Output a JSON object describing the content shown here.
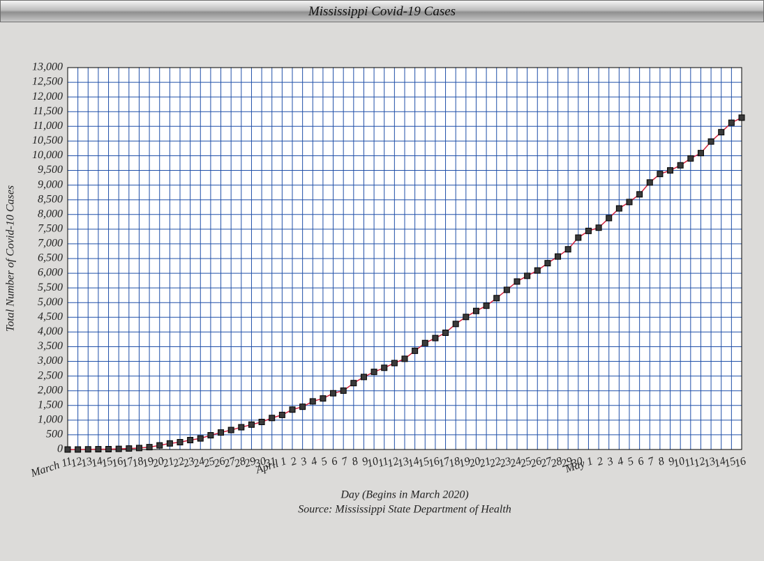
{
  "chart_data": {
    "type": "line",
    "title": "Mississippi Covid-19 Cases",
    "xlabel": "Day (Begins in March 2020)",
    "source": "Source: Mississippi State Department of Health",
    "ylabel": "Total Number of Covid-10 Cases",
    "categories": [
      "March 11",
      "12",
      "13",
      "14",
      "15",
      "16",
      "17",
      "18",
      "19",
      "20",
      "21",
      "22",
      "23",
      "24",
      "25",
      "26",
      "27",
      "28",
      "29",
      "30",
      "31",
      "April 1",
      "2",
      "3",
      "4",
      "5",
      "6",
      "7",
      "8",
      "9",
      "10",
      "11",
      "12",
      "13",
      "14",
      "15",
      "16",
      "17",
      "18",
      "19",
      "20",
      "21",
      "22",
      "23",
      "24",
      "25",
      "26",
      "27",
      "28",
      "29",
      "30",
      "May 1",
      "2",
      "3",
      "4",
      "5",
      "6",
      "7",
      "8",
      "9",
      "10",
      "11",
      "12",
      "13",
      "14",
      "15",
      "16"
    ],
    "series": [
      {
        "name": "Cases",
        "color": "#d0203c",
        "marker_color": "#3a3a3a",
        "values": [
          0,
          1,
          6,
          10,
          12,
          21,
          34,
          50,
          80,
          140,
          207,
          249,
          320,
          377,
          485,
          579,
          663,
          758,
          847,
          937,
          1073,
          1177,
          1358,
          1455,
          1638,
          1738,
          1915,
          2003,
          2260,
          2469,
          2642,
          2781,
          2942,
          3087,
          3360,
          3624,
          3793,
          3974,
          4274,
          4512,
          4716,
          4894,
          5153,
          5434,
          5718,
          5911,
          6094,
          6342,
          6569,
          6815,
          7212,
          7441,
          7550,
          7877,
          8207,
          8424,
          8686,
          9090,
          9378,
          9501,
          9674,
          9908,
          10090,
          10483,
          10801,
          11123,
          11296
        ]
      }
    ],
    "ylim": [
      0,
      13000
    ],
    "yticks": [
      0,
      500,
      {
        "value": 1000,
        "label": "1,000"
      },
      {
        "value": 1500,
        "label": "1,500"
      },
      {
        "value": 2000,
        "label": "2,000"
      },
      {
        "value": 2500,
        "label": "2,500"
      },
      {
        "value": 3000,
        "label": "3,000"
      },
      {
        "value": 3500,
        "label": "3,500"
      },
      {
        "value": 4000,
        "label": "4,000"
      },
      {
        "value": 4500,
        "label": "4,500"
      },
      {
        "value": 5000,
        "label": "5,000"
      },
      {
        "value": 5500,
        "label": "5,500"
      },
      {
        "value": 6000,
        "label": "6,000"
      },
      {
        "value": 6500,
        "label": "6,500"
      },
      {
        "value": 7000,
        "label": "7,000"
      },
      {
        "value": 7500,
        "label": "7,500"
      },
      {
        "value": 8000,
        "label": "8,000"
      },
      {
        "value": 8500,
        "label": "8,500"
      },
      {
        "value": 9000,
        "label": "9,000"
      },
      {
        "value": 9500,
        "label": "9,500"
      },
      {
        "value": 10000,
        "label": "10,000"
      },
      {
        "value": 10500,
        "label": "10,500"
      },
      {
        "value": 11000,
        "label": "11,000"
      },
      {
        "value": 11500,
        "label": "11,500"
      },
      {
        "value": 12000,
        "label": "12,000"
      },
      {
        "value": 12500,
        "label": "12,500"
      },
      {
        "value": 13000,
        "label": "13,000"
      }
    ],
    "grid": true,
    "grid_color": "#1f4fa8"
  }
}
